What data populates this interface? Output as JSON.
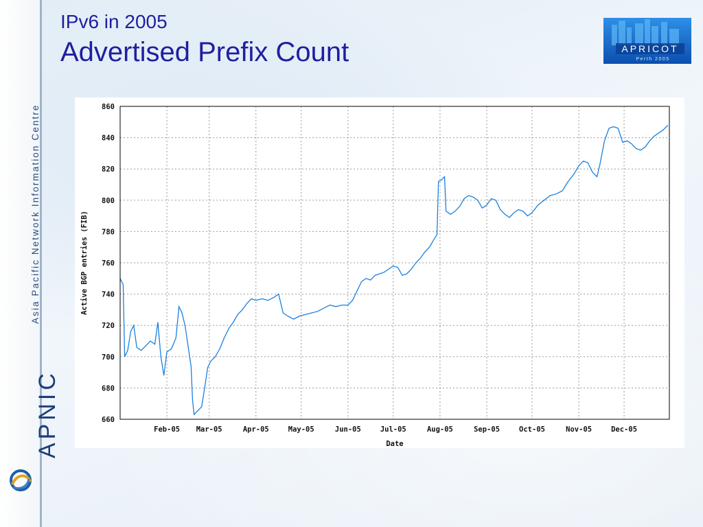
{
  "slide": {
    "subtitle": "IPv6 in 2005",
    "title": "Advertised Prefix Count"
  },
  "sidebar": {
    "org_name": "Asia Pacific Network Information Centre",
    "brand": "APNIC"
  },
  "logo": {
    "name": "APRICOT",
    "tagline": "Perth 2005"
  },
  "chart_data": {
    "type": "line",
    "xlabel": "Date",
    "ylabel": "Active BGP entries (FIB)",
    "ylim": [
      660,
      860
    ],
    "yticks": [
      660,
      680,
      700,
      720,
      740,
      760,
      780,
      800,
      820,
      840,
      860
    ],
    "xlim": [
      "2005-01-01",
      "2005-12-31"
    ],
    "xticks": [
      {
        "label": "Feb-05",
        "date": "2005-02-01"
      },
      {
        "label": "Mar-05",
        "date": "2005-03-01"
      },
      {
        "label": "Apr-05",
        "date": "2005-04-01"
      },
      {
        "label": "May-05",
        "date": "2005-05-01"
      },
      {
        "label": "Jun-05",
        "date": "2005-06-01"
      },
      {
        "label": "Jul-05",
        "date": "2005-07-01"
      },
      {
        "label": "Aug-05",
        "date": "2005-08-01"
      },
      {
        "label": "Sep-05",
        "date": "2005-09-01"
      },
      {
        "label": "Oct-05",
        "date": "2005-10-01"
      },
      {
        "label": "Nov-05",
        "date": "2005-11-01"
      },
      {
        "label": "Dec-05",
        "date": "2005-12-01"
      }
    ],
    "grid": true,
    "color": "#1a7fe0",
    "series": [
      {
        "points": [
          [
            "2005-01-01",
            750
          ],
          [
            "2005-01-03",
            746
          ],
          [
            "2005-01-04",
            700
          ],
          [
            "2005-01-06",
            704
          ],
          [
            "2005-01-08",
            716
          ],
          [
            "2005-01-10",
            720
          ],
          [
            "2005-01-12",
            706
          ],
          [
            "2005-01-15",
            704
          ],
          [
            "2005-01-18",
            707
          ],
          [
            "2005-01-21",
            710
          ],
          [
            "2005-01-24",
            708
          ],
          [
            "2005-01-26",
            722
          ],
          [
            "2005-01-28",
            700
          ],
          [
            "2005-01-30",
            688
          ],
          [
            "2005-02-01",
            703
          ],
          [
            "2005-02-04",
            705
          ],
          [
            "2005-02-07",
            712
          ],
          [
            "2005-02-09",
            732
          ],
          [
            "2005-02-11",
            728
          ],
          [
            "2005-02-13",
            720
          ],
          [
            "2005-02-15",
            707
          ],
          [
            "2005-02-17",
            694
          ],
          [
            "2005-02-18",
            672
          ],
          [
            "2005-02-19",
            663
          ],
          [
            "2005-02-21",
            665
          ],
          [
            "2005-02-24",
            668
          ],
          [
            "2005-02-26",
            680
          ],
          [
            "2005-02-28",
            693
          ],
          [
            "2005-03-02",
            697
          ],
          [
            "2005-03-05",
            700
          ],
          [
            "2005-03-08",
            705
          ],
          [
            "2005-03-11",
            712
          ],
          [
            "2005-03-14",
            718
          ],
          [
            "2005-03-17",
            722
          ],
          [
            "2005-03-20",
            727
          ],
          [
            "2005-03-23",
            730
          ],
          [
            "2005-03-26",
            734
          ],
          [
            "2005-03-29",
            737
          ],
          [
            "2005-04-01",
            736
          ],
          [
            "2005-04-05",
            737
          ],
          [
            "2005-04-09",
            736
          ],
          [
            "2005-04-13",
            738
          ],
          [
            "2005-04-16",
            740
          ],
          [
            "2005-04-19",
            728
          ],
          [
            "2005-04-22",
            726
          ],
          [
            "2005-04-26",
            724
          ],
          [
            "2005-04-30",
            726
          ],
          [
            "2005-05-04",
            727
          ],
          [
            "2005-05-08",
            728
          ],
          [
            "2005-05-12",
            729
          ],
          [
            "2005-05-16",
            731
          ],
          [
            "2005-05-20",
            733
          ],
          [
            "2005-05-24",
            732
          ],
          [
            "2005-05-28",
            733
          ],
          [
            "2005-06-01",
            733
          ],
          [
            "2005-06-04",
            736
          ],
          [
            "2005-06-07",
            742
          ],
          [
            "2005-06-10",
            748
          ],
          [
            "2005-06-13",
            750
          ],
          [
            "2005-06-16",
            749
          ],
          [
            "2005-06-19",
            752
          ],
          [
            "2005-06-22",
            753
          ],
          [
            "2005-06-25",
            754
          ],
          [
            "2005-06-28",
            756
          ],
          [
            "2005-07-01",
            758
          ],
          [
            "2005-07-04",
            757
          ],
          [
            "2005-07-07",
            752
          ],
          [
            "2005-07-10",
            753
          ],
          [
            "2005-07-13",
            756
          ],
          [
            "2005-07-16",
            760
          ],
          [
            "2005-07-19",
            763
          ],
          [
            "2005-07-22",
            767
          ],
          [
            "2005-07-25",
            770
          ],
          [
            "2005-07-28",
            775
          ],
          [
            "2005-07-30",
            778
          ],
          [
            "2005-07-31",
            812
          ],
          [
            "2005-08-02",
            813
          ],
          [
            "2005-08-04",
            815
          ],
          [
            "2005-08-05",
            793
          ],
          [
            "2005-08-08",
            791
          ],
          [
            "2005-08-11",
            793
          ],
          [
            "2005-08-14",
            796
          ],
          [
            "2005-08-17",
            801
          ],
          [
            "2005-08-20",
            803
          ],
          [
            "2005-08-23",
            802
          ],
          [
            "2005-08-26",
            800
          ],
          [
            "2005-08-29",
            795
          ],
          [
            "2005-09-01",
            797
          ],
          [
            "2005-09-04",
            801
          ],
          [
            "2005-09-07",
            800
          ],
          [
            "2005-09-10",
            794
          ],
          [
            "2005-09-13",
            791
          ],
          [
            "2005-09-16",
            789
          ],
          [
            "2005-09-19",
            792
          ],
          [
            "2005-09-22",
            794
          ],
          [
            "2005-09-25",
            793
          ],
          [
            "2005-09-28",
            790
          ],
          [
            "2005-10-01",
            792
          ],
          [
            "2005-10-05",
            797
          ],
          [
            "2005-10-09",
            800
          ],
          [
            "2005-10-13",
            803
          ],
          [
            "2005-10-17",
            804
          ],
          [
            "2005-10-21",
            806
          ],
          [
            "2005-10-25",
            812
          ],
          [
            "2005-10-29",
            817
          ],
          [
            "2005-11-01",
            822
          ],
          [
            "2005-11-04",
            825
          ],
          [
            "2005-11-07",
            824
          ],
          [
            "2005-11-10",
            818
          ],
          [
            "2005-11-13",
            815
          ],
          [
            "2005-11-15",
            823
          ],
          [
            "2005-11-18",
            838
          ],
          [
            "2005-11-21",
            846
          ],
          [
            "2005-11-24",
            847
          ],
          [
            "2005-11-27",
            846
          ],
          [
            "2005-11-30",
            837
          ],
          [
            "2005-12-03",
            838
          ],
          [
            "2005-12-06",
            836
          ],
          [
            "2005-12-09",
            833
          ],
          [
            "2005-12-12",
            832
          ],
          [
            "2005-12-15",
            834
          ],
          [
            "2005-12-18",
            838
          ],
          [
            "2005-12-21",
            841
          ],
          [
            "2005-12-24",
            843
          ],
          [
            "2005-12-27",
            845
          ],
          [
            "2005-12-30",
            848
          ]
        ]
      }
    ]
  }
}
